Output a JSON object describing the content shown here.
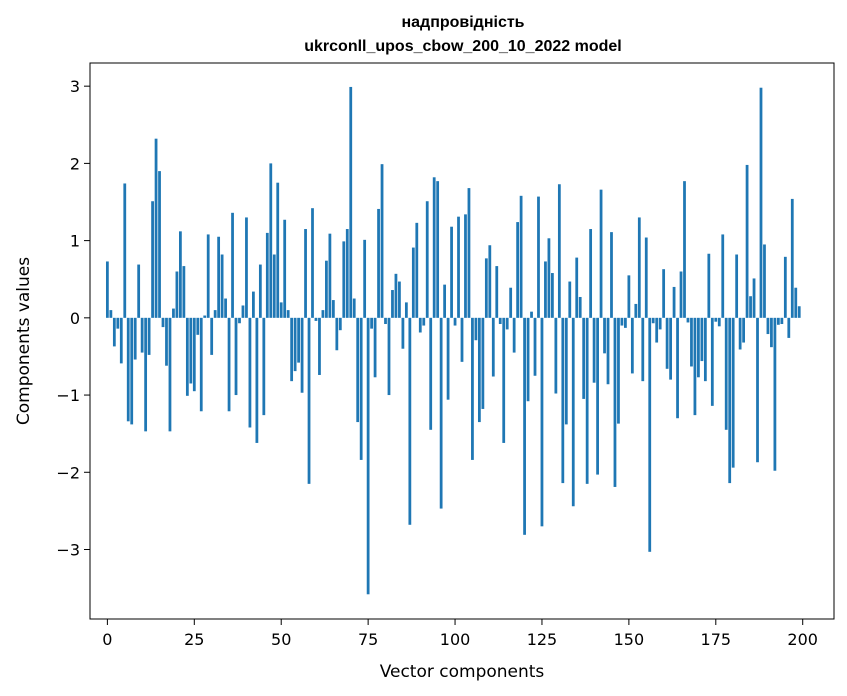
{
  "chart_data": {
    "type": "bar",
    "title": "надпровідність",
    "subtitle": "ukrconll_upos_cbow_200_10_2022 model",
    "xlabel": "Vector components",
    "ylabel": "Components values",
    "xlim": [
      -5,
      209
    ],
    "ylim": [
      -3.9,
      3.3
    ],
    "xticks": [
      0,
      25,
      50,
      75,
      100,
      125,
      150,
      175,
      200
    ],
    "yticks": [
      -3,
      -2,
      -1,
      0,
      1,
      2,
      3
    ],
    "grid": false,
    "bar_color": "#1f77b4",
    "x": [
      0,
      1,
      2,
      3,
      4,
      5,
      6,
      7,
      8,
      9,
      10,
      11,
      12,
      13,
      14,
      15,
      16,
      17,
      18,
      19,
      20,
      21,
      22,
      23,
      24,
      25,
      26,
      27,
      28,
      29,
      30,
      31,
      32,
      33,
      34,
      35,
      36,
      37,
      38,
      39,
      40,
      41,
      42,
      43,
      44,
      45,
      46,
      47,
      48,
      49,
      50,
      51,
      52,
      53,
      54,
      55,
      56,
      57,
      58,
      59,
      60,
      61,
      62,
      63,
      64,
      65,
      66,
      67,
      68,
      69,
      70,
      71,
      72,
      73,
      74,
      75,
      76,
      77,
      78,
      79,
      80,
      81,
      82,
      83,
      84,
      85,
      86,
      87,
      88,
      89,
      90,
      91,
      92,
      93,
      94,
      95,
      96,
      97,
      98,
      99,
      100,
      101,
      102,
      103,
      104,
      105,
      106,
      107,
      108,
      109,
      110,
      111,
      112,
      113,
      114,
      115,
      116,
      117,
      118,
      119,
      120,
      121,
      122,
      123,
      124,
      125,
      126,
      127,
      128,
      129,
      130,
      131,
      132,
      133,
      134,
      135,
      136,
      137,
      138,
      139,
      140,
      141,
      142,
      143,
      144,
      145,
      146,
      147,
      148,
      149,
      150,
      151,
      152,
      153,
      154,
      155,
      156,
      157,
      158,
      159,
      160,
      161,
      162,
      163,
      164,
      165,
      166,
      167,
      168,
      169,
      170,
      171,
      172,
      173,
      174,
      175,
      176,
      177,
      178,
      179,
      180,
      181,
      182,
      183,
      184,
      185,
      186,
      187,
      188,
      189,
      190,
      191,
      192,
      193,
      194,
      195,
      196,
      197,
      198,
      199
    ],
    "values": [
      0.73,
      0.1,
      -0.37,
      -0.14,
      -0.59,
      1.74,
      -1.34,
      -1.38,
      -0.54,
      0.69,
      -0.45,
      -1.47,
      -0.48,
      1.51,
      2.32,
      1.9,
      -0.12,
      -0.62,
      -1.47,
      0.12,
      0.6,
      1.12,
      0.67,
      -1.01,
      -0.85,
      -0.95,
      -0.22,
      -1.21,
      0.03,
      1.08,
      -0.48,
      0.1,
      1.05,
      0.82,
      0.25,
      -1.21,
      1.36,
      -1.0,
      -0.07,
      0.16,
      1.3,
      -1.42,
      0.34,
      -1.62,
      0.69,
      -1.26,
      1.1,
      2.0,
      0.82,
      1.75,
      0.2,
      1.27,
      0.1,
      -0.82,
      -0.69,
      -0.58,
      -0.97,
      1.15,
      -2.15,
      1.42,
      -0.04,
      -0.74,
      0.1,
      0.74,
      1.09,
      0.23,
      -0.42,
      -0.16,
      0.99,
      1.15,
      2.99,
      0.25,
      -1.35,
      -1.84,
      1.01,
      -3.58,
      -0.14,
      -0.77,
      1.41,
      1.99,
      -0.08,
      -1.0,
      0.36,
      0.57,
      0.47,
      -0.4,
      0.2,
      -2.68,
      0.91,
      1.23,
      -0.19,
      -0.1,
      1.51,
      -1.45,
      1.82,
      1.77,
      -2.47,
      0.43,
      -1.06,
      1.18,
      -0.1,
      1.31,
      -0.57,
      1.34,
      1.68,
      -1.84,
      -0.29,
      -1.35,
      -1.18,
      0.77,
      0.94,
      -0.76,
      0.67,
      -0.08,
      -1.62,
      -0.15,
      0.39,
      -0.45,
      1.24,
      1.58,
      -2.81,
      -1.08,
      0.08,
      -0.75,
      1.57,
      -2.7,
      0.73,
      1.03,
      0.58,
      -0.98,
      1.73,
      -2.14,
      -1.38,
      0.47,
      -2.44,
      0.78,
      0.27,
      -1.05,
      -2.15,
      1.15,
      -0.84,
      -2.03,
      1.66,
      -0.46,
      -0.86,
      1.11,
      -2.19,
      -1.37,
      -0.1,
      -0.13,
      0.55,
      -0.72,
      0.18,
      1.3,
      -0.82,
      1.04,
      -3.03,
      -0.07,
      -0.32,
      -0.15,
      0.63,
      -0.66,
      -0.8,
      0.4,
      -1.3,
      0.6,
      1.77,
      -0.06,
      -0.63,
      -1.26,
      -0.77,
      -0.56,
      -0.82,
      0.83,
      -1.14,
      -0.05,
      -0.11,
      1.08,
      -1.45,
      -2.14,
      -1.94,
      0.82,
      -0.41,
      -0.32,
      1.98,
      0.28,
      0.51,
      -1.87,
      2.98,
      0.95,
      -0.21,
      -0.38,
      -1.98,
      -0.09,
      -0.08,
      0.79,
      -0.26,
      1.54,
      0.39,
      0.15
    ]
  }
}
